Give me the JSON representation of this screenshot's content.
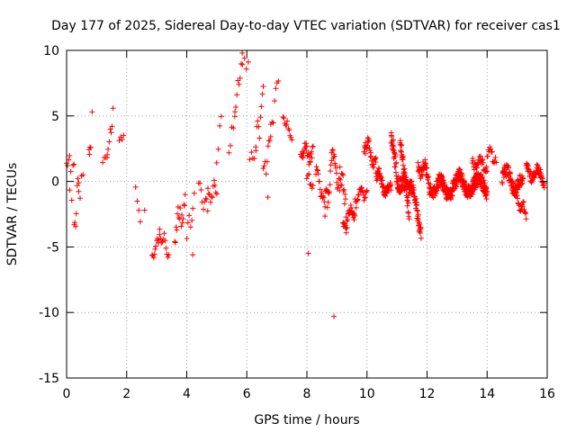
{
  "chart_data": {
    "type": "scatter",
    "title": "Day 177 of 2025, Sidereal Day-to-day VTEC variation (SDTVAR) for receiver cas1",
    "xlabel": "GPS time / hours",
    "ylabel": "SDTVAR / TECUs",
    "xlim": [
      0,
      16
    ],
    "ylim": [
      -15,
      10
    ],
    "xticks": [
      0,
      2,
      4,
      6,
      8,
      10,
      12,
      14,
      16
    ],
    "yticks": [
      -15,
      -10,
      -5,
      0,
      5,
      10
    ],
    "grid": true,
    "marker": "+",
    "color": "#ff0000",
    "segments": [
      [
        0.0,
        0.1,
        0.3,
        0.8,
        1.2,
        2.0
      ],
      [
        0.1,
        0.25,
        0.4,
        -0.3,
        0.7,
        1.6
      ],
      [
        0.25,
        0.4,
        0.5,
        -3.8,
        0.4,
        1.4
      ],
      [
        0.4,
        0.55,
        0.3,
        -1.5,
        0.5,
        0.7
      ],
      [
        0.75,
        0.8,
        0.15,
        2.2,
        2.7,
        0.3
      ],
      [
        1.2,
        1.35,
        0.2,
        1.5,
        2.0,
        0.3
      ],
      [
        1.35,
        1.55,
        0.4,
        2.0,
        5.2,
        0.6
      ],
      [
        1.75,
        1.9,
        0.25,
        3.2,
        3.4,
        0.15
      ],
      [
        2.3,
        2.45,
        0.25,
        -0.8,
        -2.8,
        0.5
      ],
      [
        2.85,
        3.1,
        0.5,
        -5.9,
        -4.0,
        0.6
      ],
      [
        3.1,
        3.4,
        0.4,
        -4.0,
        -5.2,
        0.7
      ],
      [
        3.6,
        3.95,
        0.5,
        -4.0,
        -1.5,
        1.2
      ],
      [
        4.0,
        4.25,
        0.3,
        -4.5,
        -1.5,
        1.2
      ],
      [
        4.4,
        4.7,
        0.35,
        -0.8,
        -1.8,
        1.0
      ],
      [
        4.7,
        5.0,
        0.4,
        -1.0,
        -0.5,
        0.8
      ],
      [
        5.0,
        5.15,
        0.2,
        1.0,
        5.5,
        1.0
      ],
      [
        5.4,
        5.6,
        0.3,
        2.5,
        5.0,
        0.6
      ],
      [
        5.6,
        5.85,
        0.35,
        5.0,
        9.5,
        0.8
      ],
      [
        5.85,
        6.05,
        0.2,
        9.0,
        8.5,
        0.7
      ],
      [
        6.1,
        6.3,
        0.3,
        1.8,
        2.0,
        0.4
      ],
      [
        6.3,
        6.55,
        0.4,
        2.5,
        6.5,
        1.2
      ],
      [
        6.55,
        6.8,
        0.4,
        0.0,
        3.5,
        1.2
      ],
      [
        6.8,
        7.05,
        0.3,
        4.0,
        7.8,
        0.8
      ],
      [
        7.2,
        7.5,
        0.4,
        5.0,
        3.3,
        0.5
      ],
      [
        7.8,
        8.2,
        0.7,
        2.3,
        2.0,
        0.8
      ],
      [
        8.0,
        8.2,
        0.4,
        0.5,
        -0.5,
        0.6
      ],
      [
        8.3,
        8.6,
        0.6,
        1.0,
        -2.0,
        0.8
      ],
      [
        8.6,
        8.9,
        0.7,
        -2.5,
        2.0,
        1.5
      ],
      [
        8.9,
        9.3,
        0.7,
        1.5,
        -1.5,
        1.2
      ],
      [
        9.2,
        9.6,
        0.8,
        -3.5,
        -2.0,
        0.8
      ],
      [
        9.6,
        10.0,
        0.6,
        -1.5,
        -0.5,
        0.8
      ],
      [
        9.9,
        10.3,
        0.8,
        3.0,
        1.5,
        0.8
      ],
      [
        10.3,
        10.8,
        1.2,
        0.5,
        -1.0,
        0.8
      ],
      [
        10.8,
        11.4,
        1.5,
        2.5,
        -2.0,
        1.3
      ],
      [
        11.1,
        11.8,
        1.5,
        2.5,
        -3.5,
        1.0
      ],
      [
        11.7,
        12.2,
        1.2,
        1.5,
        -0.5,
        1.0
      ],
      [
        12.2,
        13.0,
        1.8,
        -0.5,
        -0.5,
        1.0
      ],
      [
        13.0,
        14.0,
        2.0,
        0.0,
        -0.5,
        1.0
      ],
      [
        13.5,
        14.0,
        0.7,
        1.5,
        1.2,
        0.6
      ],
      [
        14.0,
        14.3,
        0.5,
        2.5,
        1.5,
        0.6
      ],
      [
        14.5,
        15.2,
        1.5,
        0.5,
        -0.5,
        1.0
      ],
      [
        14.9,
        15.3,
        0.7,
        -1.0,
        -2.5,
        0.6
      ],
      [
        15.3,
        15.9,
        1.0,
        1.0,
        0.2,
        0.8
      ]
    ],
    "outliers": [
      [
        0.85,
        5.3
      ],
      [
        8.05,
        -5.5
      ],
      [
        8.9,
        -10.3
      ],
      [
        6.7,
        -1.2
      ],
      [
        9.1,
        1.1
      ],
      [
        2.6,
        -2.2
      ],
      [
        4.2,
        -5.6
      ]
    ]
  }
}
